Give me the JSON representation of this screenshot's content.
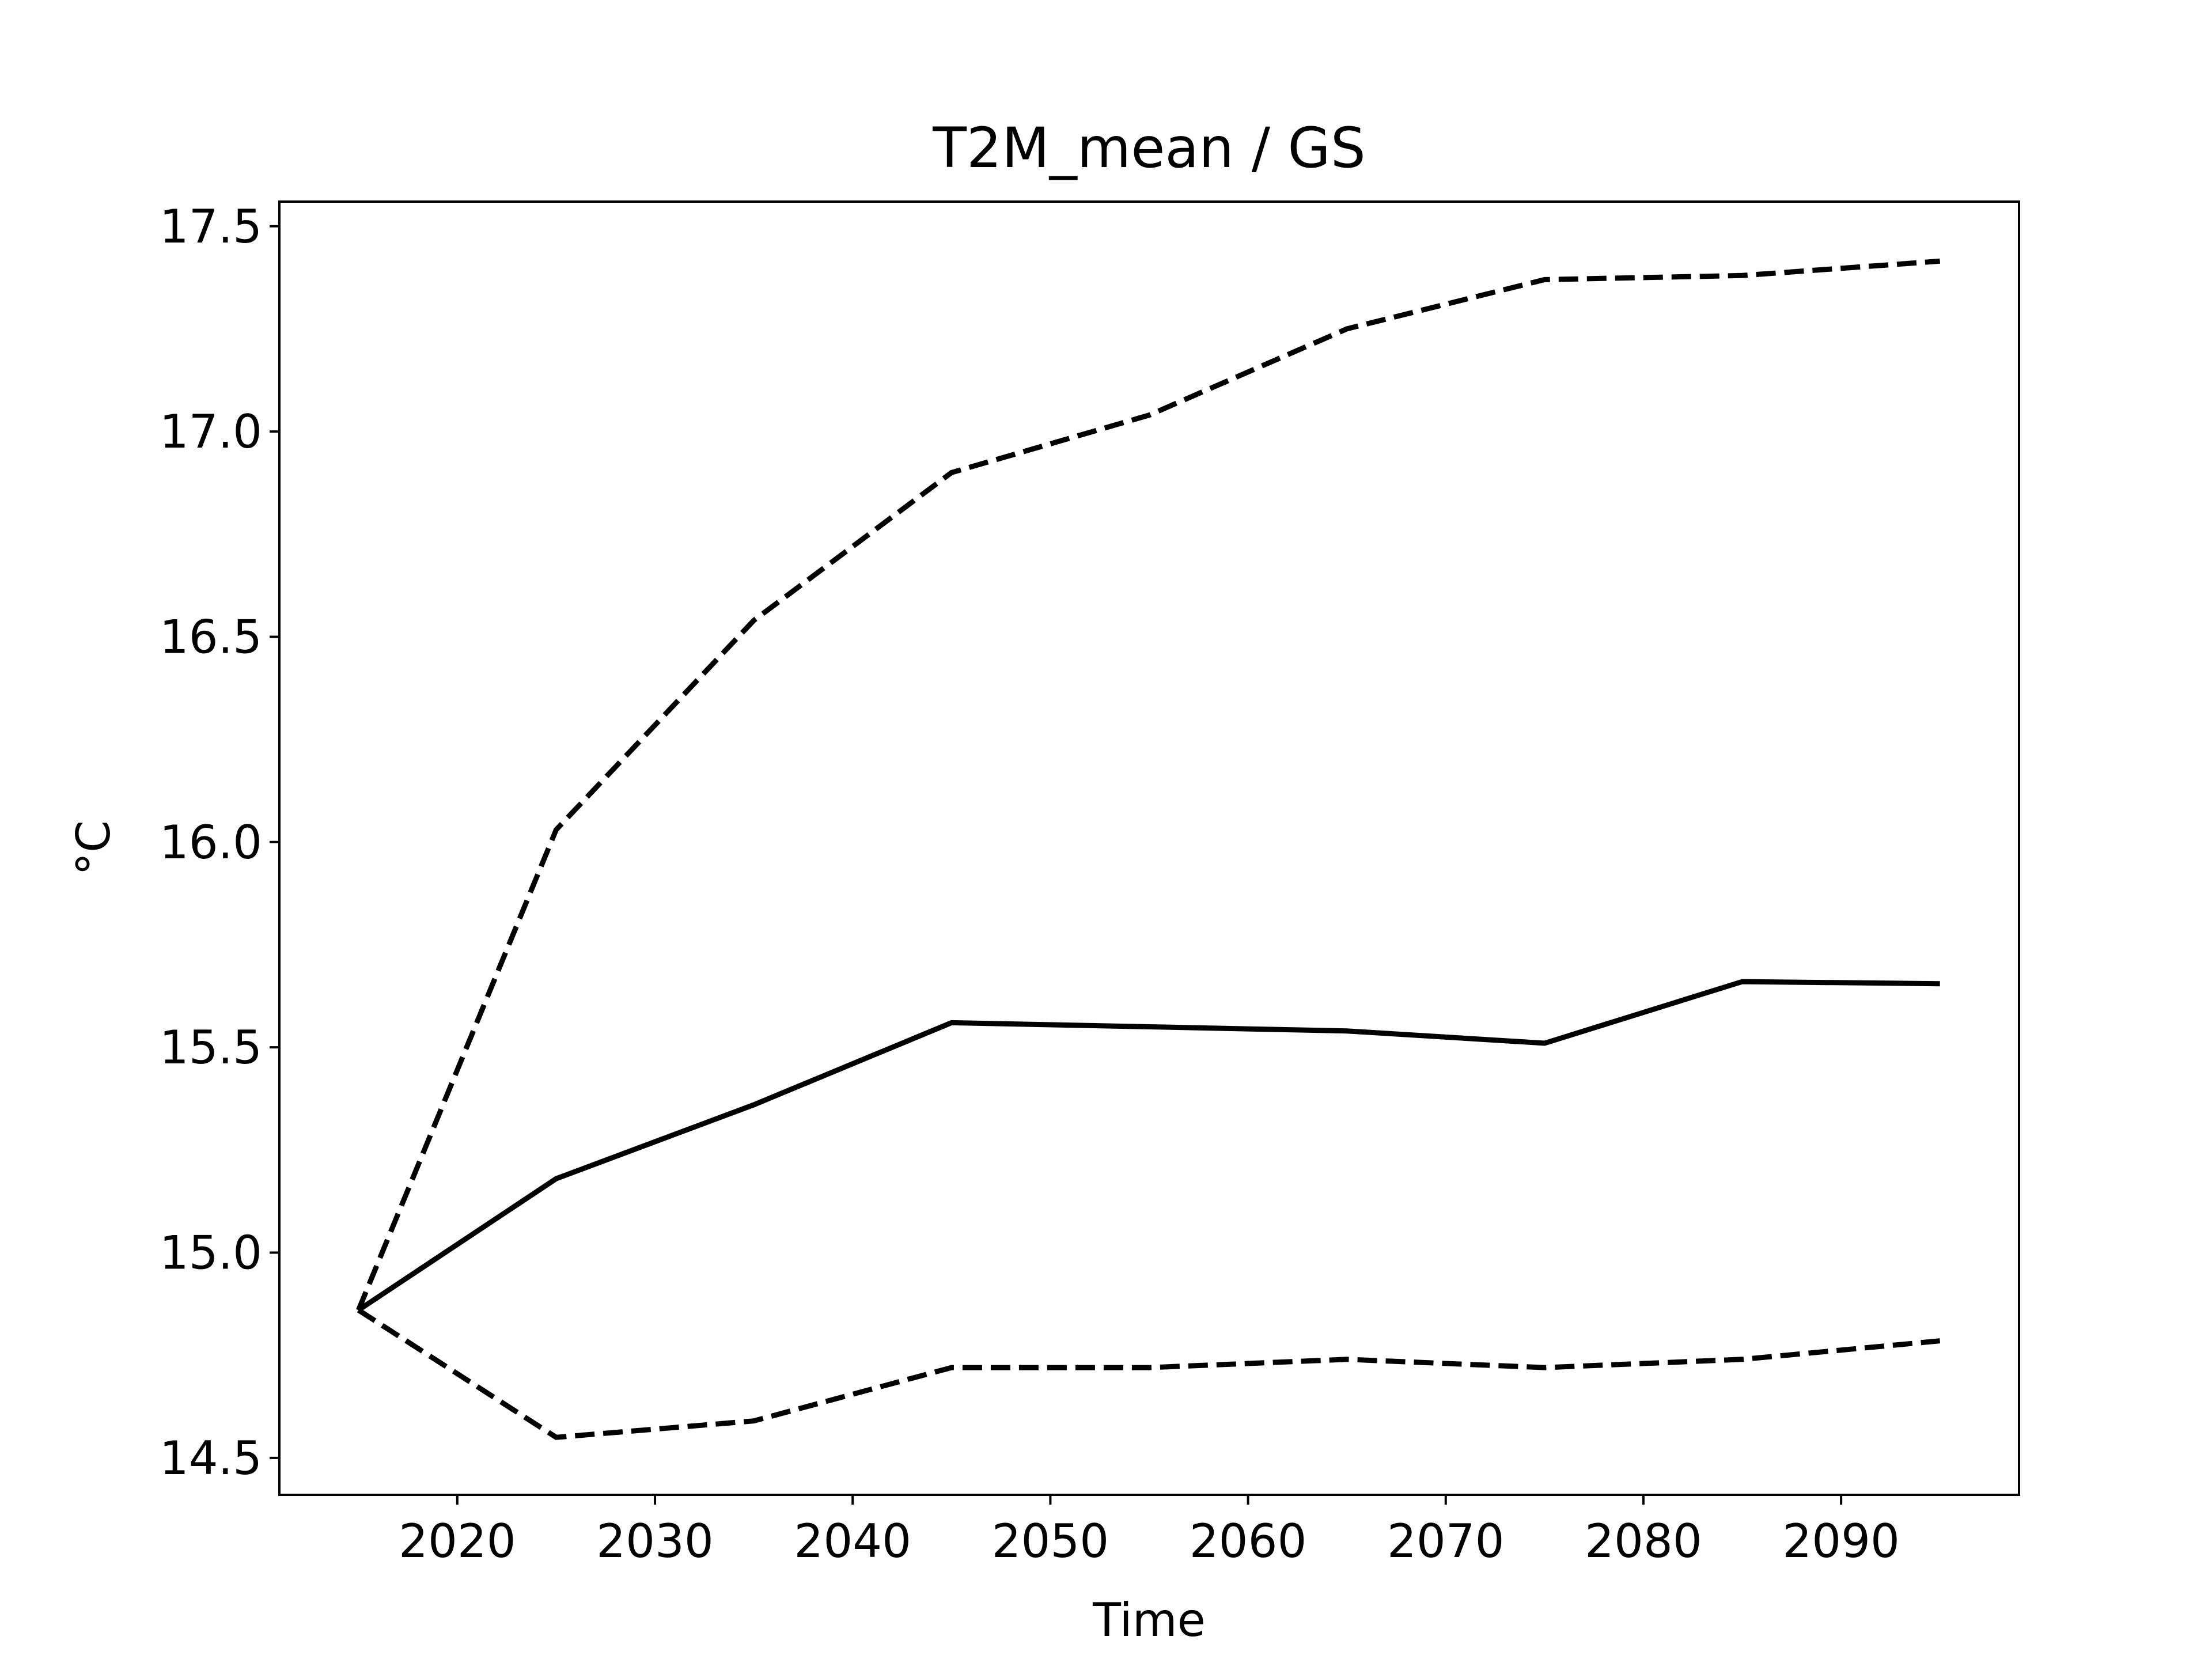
{
  "chart_data": {
    "type": "line",
    "title": "T2M_mean / GS",
    "xlabel": "Time",
    "ylabel": "°C",
    "xlim": [
      2011,
      2099
    ],
    "ylim": [
      14.41,
      17.56
    ],
    "x_ticks": [
      2020,
      2030,
      2040,
      2050,
      2060,
      2070,
      2080,
      2090
    ],
    "y_ticks": [
      14.5,
      15.0,
      15.5,
      16.0,
      16.5,
      17.0,
      17.5
    ],
    "x_tick_labels": [
      "2020",
      "2030",
      "2040",
      "2050",
      "2060",
      "2070",
      "2080",
      "2090"
    ],
    "y_tick_labels": [
      "14.5",
      "15.0",
      "15.5",
      "16.0",
      "16.5",
      "17.0",
      "17.5"
    ],
    "grid": false,
    "x": [
      2015,
      2025,
      2035,
      2045,
      2055,
      2065,
      2075,
      2085,
      2095
    ],
    "series": [
      {
        "style": "solid",
        "color": "#000000",
        "values": [
          14.86,
          15.18,
          15.36,
          15.56,
          15.55,
          15.54,
          15.51,
          15.66,
          15.655
        ]
      },
      {
        "style": "dashed",
        "color": "#000000",
        "values": [
          14.86,
          16.03,
          16.54,
          16.9,
          17.04,
          17.25,
          17.37,
          17.38,
          17.415
        ]
      },
      {
        "style": "dashed",
        "color": "#000000",
        "values": [
          14.86,
          14.55,
          14.59,
          14.72,
          14.72,
          14.74,
          14.72,
          14.74,
          14.785
        ]
      }
    ]
  }
}
